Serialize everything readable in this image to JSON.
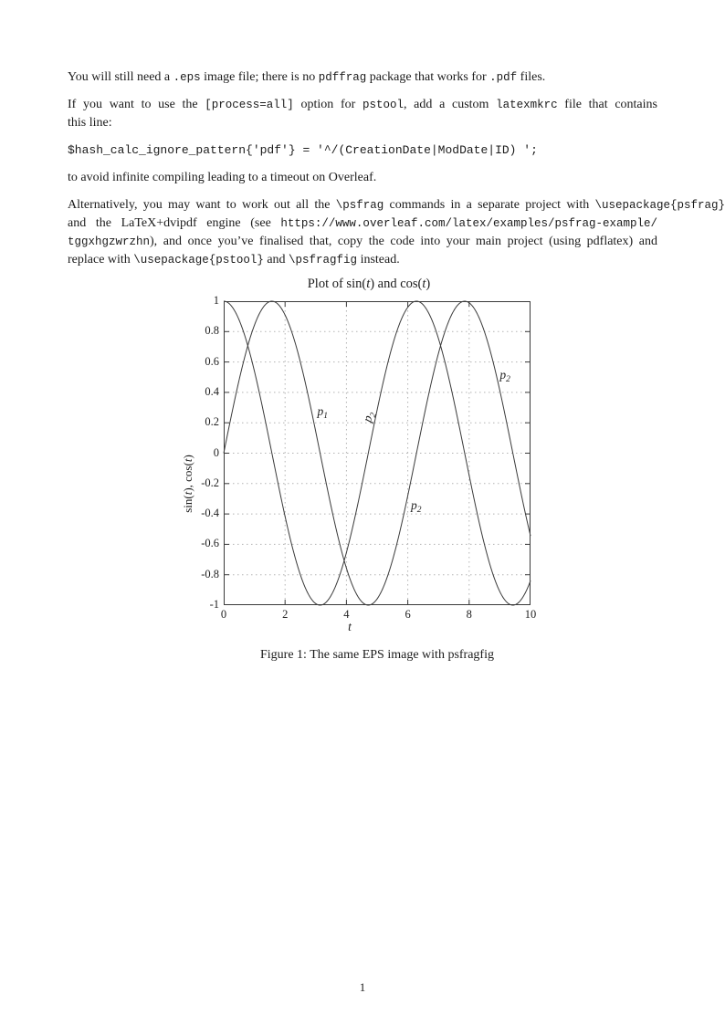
{
  "page": {
    "number": "1"
  },
  "content": {
    "paragraphs": [
      {
        "lines": [
          {
            "justify": false,
            "segments": [
              {
                "style": "rm",
                "text": "You will still need a "
              },
              {
                "style": "tt",
                "text": ".eps"
              },
              {
                "style": "rm",
                "text": " image file; there is no "
              },
              {
                "style": "tt",
                "text": "pdffrag"
              },
              {
                "style": "rm",
                "text": " package that works for "
              },
              {
                "style": "tt",
                "text": ".pdf"
              },
              {
                "style": "rm",
                "text": " files."
              }
            ]
          }
        ]
      },
      {
        "lines": [
          {
            "justify": true,
            "segments": [
              {
                "style": "rm",
                "text": "If you want to use the "
              },
              {
                "style": "tt",
                "text": "[process=all]"
              },
              {
                "style": "rm",
                "text": " option for "
              },
              {
                "style": "tt",
                "text": "pstool"
              },
              {
                "style": "rm",
                "text": ", add a custom "
              },
              {
                "style": "tt",
                "text": "latexmkrc"
              },
              {
                "style": "rm",
                "text": " file that contains"
              }
            ]
          },
          {
            "justify": false,
            "segments": [
              {
                "style": "rm",
                "text": "this line:"
              }
            ]
          }
        ]
      },
      {
        "code": true,
        "lines": [
          {
            "justify": false,
            "segments": [
              {
                "style": "tt",
                "text": "$hash_calc_ignore_pattern{'pdf'} = '^/(CreationDate|ModDate|ID) ';"
              }
            ]
          }
        ]
      },
      {
        "lines": [
          {
            "justify": false,
            "segments": [
              {
                "style": "rm",
                "text": "to avoid infinite compiling leading to a timeout on Overleaf."
              }
            ]
          }
        ]
      },
      {
        "lines": [
          {
            "justify": true,
            "overfull": true,
            "segments": [
              {
                "style": "rm",
                "text": "Alternatively, you may want to work out all the "
              },
              {
                "style": "tt",
                "text": "\\psfrag"
              },
              {
                "style": "rm",
                "text": " commands in a separate project with "
              },
              {
                "style": "tt",
                "text": "\\usepackage{psfrag}"
              }
            ]
          },
          {
            "justify": true,
            "segments": [
              {
                "style": "rm",
                "text": "and the LaTeX+dvipdf engine (see "
              },
              {
                "style": "tt",
                "text": "https://www.overleaf.com/latex/examples/psfrag-example/"
              }
            ]
          },
          {
            "justify": true,
            "segments": [
              {
                "style": "tt",
                "text": "tggxhgzwrzhn"
              },
              {
                "style": "rm",
                "text": "), and once you’ve finalised that, copy the code into your main project (using pdflatex) and"
              }
            ]
          },
          {
            "justify": false,
            "segments": [
              {
                "style": "rm",
                "text": "replace with "
              },
              {
                "style": "tt",
                "text": "\\usepackage{pstool}"
              },
              {
                "style": "rm",
                "text": " and "
              },
              {
                "style": "tt",
                "text": "\\psfragfig"
              },
              {
                "style": "rm",
                "text": " instead."
              }
            ]
          }
        ]
      }
    ]
  },
  "figure": {
    "caption": "Figure 1: The same EPS image with psfragfig",
    "title_segments": [
      {
        "style": "rm",
        "text": "Plot of sin("
      },
      {
        "style": "it",
        "text": "t"
      },
      {
        "style": "rm",
        "text": ") and cos("
      },
      {
        "style": "it",
        "text": "t"
      },
      {
        "style": "rm",
        "text": ")"
      }
    ],
    "ylabel_segments": [
      {
        "style": "rm",
        "text": "sin("
      },
      {
        "style": "it",
        "text": "t"
      },
      {
        "style": "rm",
        "text": "), cos("
      },
      {
        "style": "it",
        "text": "t"
      },
      {
        "style": "rm",
        "text": ")"
      }
    ],
    "xlabel": "t"
  },
  "chart_data": {
    "type": "line",
    "title": "Plot of sin(t) and cos(t)",
    "xlabel": "t",
    "ylabel": "sin(t), cos(t)",
    "xlim": [
      0,
      10
    ],
    "ylim": [
      -1,
      1
    ],
    "grid": true,
    "xticks": {
      "values": [
        0,
        2,
        4,
        6,
        8,
        10
      ],
      "labels": [
        "0",
        "2",
        "4",
        "6",
        "8",
        "10"
      ]
    },
    "yticks": {
      "values": [
        1,
        0.8,
        0.6,
        0.4,
        0.2,
        0,
        -0.2,
        -0.4,
        -0.6,
        -0.8,
        -1
      ],
      "labels": [
        "1",
        "0.8",
        "0.6",
        "0.4",
        "0.2",
        "0",
        "-0.2",
        "-0.4",
        "-0.6",
        "-0.8",
        "-1"
      ]
    },
    "series": [
      {
        "name": "sin(t)",
        "fn": "sin",
        "domain": [
          0,
          10
        ]
      },
      {
        "name": "cos(t)",
        "fn": "cos",
        "domain": [
          0,
          10
        ]
      }
    ],
    "annotations": [
      {
        "base": "p",
        "sub": "1",
        "t": 3.05,
        "y": 0.25,
        "rot": 0
      },
      {
        "base": "p",
        "sub": "2",
        "t": 4.78,
        "y": 0.2,
        "rot": -72
      },
      {
        "base": "p",
        "sub": "2",
        "t": 6.1,
        "y": -0.37,
        "rot": 0
      },
      {
        "base": "p",
        "sub": "2",
        "t": 9.0,
        "y": 0.49,
        "rot": 0
      }
    ],
    "colors": {
      "curve": "#3a3a3a",
      "grid": "#b3b3b3",
      "axis": "#3a3a3a"
    }
  }
}
